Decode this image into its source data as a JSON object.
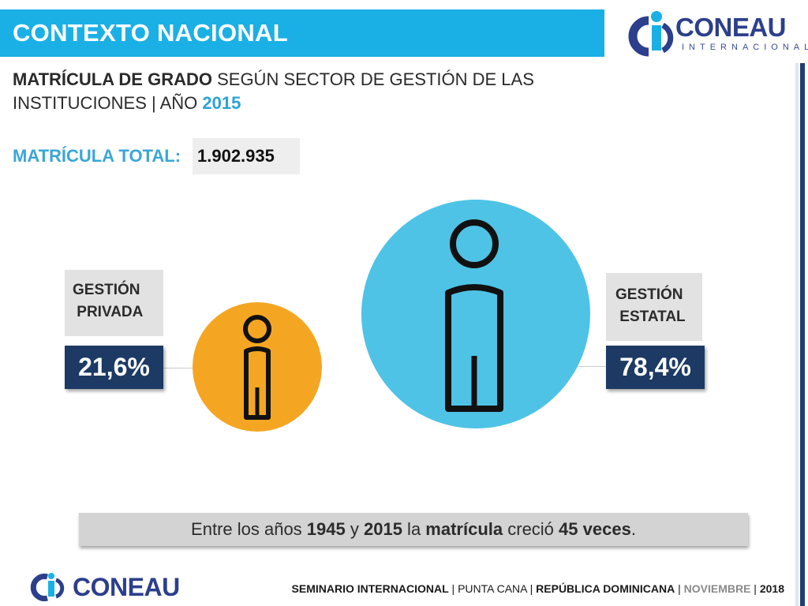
{
  "header": {
    "title": "CONTEXTO NACIONAL"
  },
  "logo_top": {
    "name": "CONEAU",
    "sub": "INTERNACIONAL"
  },
  "subtitle": {
    "part1_bold": "MATRÍCULA DE GRADO",
    "part2": " SEGÚN SECTOR DE GESTIÓN DE LAS INSTITUCIONES | AÑO ",
    "year": "2015"
  },
  "total": {
    "label": "MATRÍCULA TOTAL:",
    "value": "1.902.935"
  },
  "private": {
    "label": "GESTIÓN\n PRIVADA",
    "percent": "21,6%",
    "share": 21.6,
    "color": "#f4a623"
  },
  "public": {
    "label": "GESTIÓN\n ESTATAL",
    "percent": "78,4%",
    "share": 78.4,
    "color": "#4ec3e6"
  },
  "note": {
    "t1": "Entre los años ",
    "y1": "1945",
    "t2": " y ",
    "y2": "2015",
    "t3": " la ",
    "t4": "matrícula",
    "t5": " creció ",
    "t6": "45 veces",
    "t7": "."
  },
  "logo_bottom": {
    "name": "CONEAU"
  },
  "footer": {
    "event": "SEMINARIO INTERNACIONAL",
    "sep1": " | ",
    "city": "PUNTA CANA",
    "sep2": " | ",
    "country": "REPÚBLICA DOMINICANA",
    "sep3": " | ",
    "month": "NOVIEMBRE",
    "sep4": " | ",
    "year": "2018"
  }
}
